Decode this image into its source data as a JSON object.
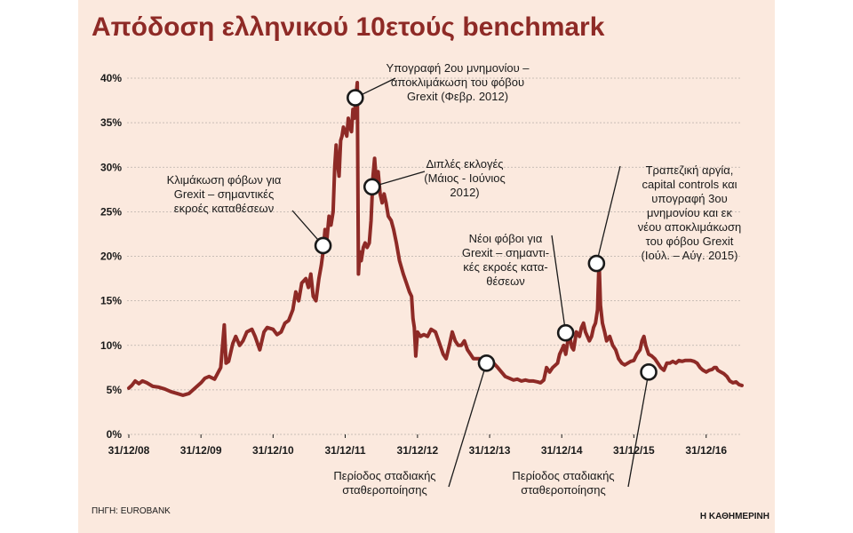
{
  "chart_data": {
    "type": "line",
    "title": "Απόδοση ελληνικού 10ετούς benchmark",
    "xlabel": "",
    "ylabel": "",
    "ylim": [
      0,
      40
    ],
    "yticks": [
      "0%",
      "5%",
      "10%",
      "15%",
      "20%",
      "25%",
      "30%",
      "35%",
      "40%"
    ],
    "xticks": [
      "31/12/08",
      "31/12/09",
      "31/12/10",
      "31/12/11",
      "31/12/12",
      "31/12/13",
      "31/12/14",
      "31/12/15",
      "31/12/16"
    ],
    "grid": true,
    "series_color": "#8e2a26",
    "series": [
      {
        "values": [
          {
            "x": "2008-12-31",
            "y": 5.2
          },
          {
            "x": "2009-01-15",
            "y": 5.5
          },
          {
            "x": "2009-02-01",
            "y": 6.0
          },
          {
            "x": "2009-02-20",
            "y": 5.7
          },
          {
            "x": "2009-03-10",
            "y": 6.0
          },
          {
            "x": "2009-04-01",
            "y": 5.8
          },
          {
            "x": "2009-05-01",
            "y": 5.4
          },
          {
            "x": "2009-06-01",
            "y": 5.3
          },
          {
            "x": "2009-07-01",
            "y": 5.1
          },
          {
            "x": "2009-08-01",
            "y": 4.8
          },
          {
            "x": "2009-09-01",
            "y": 4.6
          },
          {
            "x": "2009-10-01",
            "y": 4.4
          },
          {
            "x": "2009-11-01",
            "y": 4.6
          },
          {
            "x": "2009-12-01",
            "y": 5.2
          },
          {
            "x": "2009-12-31",
            "y": 5.8
          },
          {
            "x": "2010-01-20",
            "y": 6.3
          },
          {
            "x": "2010-02-10",
            "y": 6.5
          },
          {
            "x": "2010-03-10",
            "y": 6.2
          },
          {
            "x": "2010-04-10",
            "y": 7.5
          },
          {
            "x": "2010-04-28",
            "y": 12.3
          },
          {
            "x": "2010-05-07",
            "y": 8.0
          },
          {
            "x": "2010-05-20",
            "y": 8.2
          },
          {
            "x": "2010-06-10",
            "y": 10.2
          },
          {
            "x": "2010-06-25",
            "y": 11.0
          },
          {
            "x": "2010-07-15",
            "y": 10.0
          },
          {
            "x": "2010-08-01",
            "y": 10.5
          },
          {
            "x": "2010-08-20",
            "y": 11.5
          },
          {
            "x": "2010-09-15",
            "y": 11.8
          },
          {
            "x": "2010-10-01",
            "y": 11.0
          },
          {
            "x": "2010-10-25",
            "y": 9.5
          },
          {
            "x": "2010-11-15",
            "y": 11.5
          },
          {
            "x": "2010-12-01",
            "y": 12.0
          },
          {
            "x": "2010-12-31",
            "y": 11.8
          },
          {
            "x": "2011-01-20",
            "y": 11.2
          },
          {
            "x": "2011-02-10",
            "y": 11.5
          },
          {
            "x": "2011-03-01",
            "y": 12.5
          },
          {
            "x": "2011-03-20",
            "y": 12.8
          },
          {
            "x": "2011-04-10",
            "y": 14.0
          },
          {
            "x": "2011-04-25",
            "y": 16.0
          },
          {
            "x": "2011-05-10",
            "y": 15.0
          },
          {
            "x": "2011-05-25",
            "y": 17.0
          },
          {
            "x": "2011-06-15",
            "y": 17.5
          },
          {
            "x": "2011-06-28",
            "y": 16.5
          },
          {
            "x": "2011-07-10",
            "y": 18.0
          },
          {
            "x": "2011-07-22",
            "y": 15.5
          },
          {
            "x": "2011-08-05",
            "y": 15.0
          },
          {
            "x": "2011-08-20",
            "y": 17.5
          },
          {
            "x": "2011-09-01",
            "y": 19.0
          },
          {
            "x": "2011-09-10",
            "y": 20.5
          },
          {
            "x": "2011-09-20",
            "y": 23.0
          },
          {
            "x": "2011-09-30",
            "y": 22.0
          },
          {
            "x": "2011-10-10",
            "y": 24.5
          },
          {
            "x": "2011-10-20",
            "y": 23.5
          },
          {
            "x": "2011-10-31",
            "y": 25.0
          },
          {
            "x": "2011-11-08",
            "y": 30.0
          },
          {
            "x": "2011-11-15",
            "y": 32.5
          },
          {
            "x": "2011-11-22",
            "y": 30.5
          },
          {
            "x": "2011-11-30",
            "y": 29.0
          },
          {
            "x": "2011-12-08",
            "y": 33.0
          },
          {
            "x": "2011-12-15",
            "y": 33.5
          },
          {
            "x": "2011-12-22",
            "y": 34.5
          },
          {
            "x": "2011-12-31",
            "y": 34.0
          },
          {
            "x": "2012-01-08",
            "y": 33.5
          },
          {
            "x": "2012-01-16",
            "y": 35.5
          },
          {
            "x": "2012-01-24",
            "y": 34.5
          },
          {
            "x": "2012-02-01",
            "y": 34.0
          },
          {
            "x": "2012-02-08",
            "y": 36.5
          },
          {
            "x": "2012-02-15",
            "y": 35.5
          },
          {
            "x": "2012-02-22",
            "y": 37.5
          },
          {
            "x": "2012-03-01",
            "y": 39.5
          },
          {
            "x": "2012-03-07",
            "y": 18.0
          },
          {
            "x": "2012-03-14",
            "y": 20.5
          },
          {
            "x": "2012-03-21",
            "y": 19.5
          },
          {
            "x": "2012-04-01",
            "y": 21.0
          },
          {
            "x": "2012-04-10",
            "y": 21.5
          },
          {
            "x": "2012-04-20",
            "y": 21.0
          },
          {
            "x": "2012-05-01",
            "y": 21.5
          },
          {
            "x": "2012-05-10",
            "y": 24.0
          },
          {
            "x": "2012-05-20",
            "y": 29.0
          },
          {
            "x": "2012-05-28",
            "y": 31.0
          },
          {
            "x": "2012-06-05",
            "y": 28.5
          },
          {
            "x": "2012-06-15",
            "y": 29.5
          },
          {
            "x": "2012-06-25",
            "y": 27.0
          },
          {
            "x": "2012-07-05",
            "y": 26.0
          },
          {
            "x": "2012-07-15",
            "y": 27.0
          },
          {
            "x": "2012-07-25",
            "y": 26.0
          },
          {
            "x": "2012-08-05",
            "y": 24.5
          },
          {
            "x": "2012-08-20",
            "y": 24.0
          },
          {
            "x": "2012-09-01",
            "y": 23.0
          },
          {
            "x": "2012-09-15",
            "y": 21.5
          },
          {
            "x": "2012-10-01",
            "y": 19.5
          },
          {
            "x": "2012-10-20",
            "y": 18.0
          },
          {
            "x": "2012-11-05",
            "y": 17.0
          },
          {
            "x": "2012-11-20",
            "y": 16.0
          },
          {
            "x": "2012-12-01",
            "y": 15.5
          },
          {
            "x": "2012-12-08",
            "y": 13.0
          },
          {
            "x": "2012-12-15",
            "y": 12.0
          },
          {
            "x": "2012-12-22",
            "y": 8.8
          },
          {
            "x": "2012-12-31",
            "y": 11.5
          },
          {
            "x": "2013-01-15",
            "y": 11.0
          },
          {
            "x": "2013-02-01",
            "y": 11.2
          },
          {
            "x": "2013-02-20",
            "y": 11.0
          },
          {
            "x": "2013-03-10",
            "y": 11.8
          },
          {
            "x": "2013-04-01",
            "y": 11.5
          },
          {
            "x": "2013-04-25",
            "y": 10.0
          },
          {
            "x": "2013-05-10",
            "y": 9.0
          },
          {
            "x": "2013-05-25",
            "y": 8.5
          },
          {
            "x": "2013-06-10",
            "y": 10.0
          },
          {
            "x": "2013-06-25",
            "y": 11.5
          },
          {
            "x": "2013-07-10",
            "y": 10.5
          },
          {
            "x": "2013-07-25",
            "y": 10.0
          },
          {
            "x": "2013-08-10",
            "y": 10.0
          },
          {
            "x": "2013-08-25",
            "y": 10.5
          },
          {
            "x": "2013-09-10",
            "y": 9.5
          },
          {
            "x": "2013-09-25",
            "y": 9.0
          },
          {
            "x": "2013-10-10",
            "y": 8.5
          },
          {
            "x": "2013-10-25",
            "y": 8.5
          },
          {
            "x": "2013-11-10",
            "y": 8.5
          },
          {
            "x": "2013-11-25",
            "y": 8.0
          },
          {
            "x": "2013-12-10",
            "y": 8.5
          },
          {
            "x": "2013-12-31",
            "y": 8.3
          },
          {
            "x": "2014-01-20",
            "y": 8.0
          },
          {
            "x": "2014-02-10",
            "y": 7.5
          },
          {
            "x": "2014-03-01",
            "y": 7.0
          },
          {
            "x": "2014-03-20",
            "y": 6.5
          },
          {
            "x": "2014-04-10",
            "y": 6.3
          },
          {
            "x": "2014-05-01",
            "y": 6.1
          },
          {
            "x": "2014-05-20",
            "y": 6.2
          },
          {
            "x": "2014-06-10",
            "y": 6.0
          },
          {
            "x": "2014-06-30",
            "y": 6.1
          },
          {
            "x": "2014-07-20",
            "y": 6.0
          },
          {
            "x": "2014-08-10",
            "y": 6.0
          },
          {
            "x": "2014-08-31",
            "y": 5.9
          },
          {
            "x": "2014-09-15",
            "y": 5.8
          },
          {
            "x": "2014-10-01",
            "y": 6.1
          },
          {
            "x": "2014-10-15",
            "y": 7.5
          },
          {
            "x": "2014-10-31",
            "y": 7.0
          },
          {
            "x": "2014-11-15",
            "y": 7.5
          },
          {
            "x": "2014-11-30",
            "y": 7.8
          },
          {
            "x": "2014-12-10",
            "y": 8.0
          },
          {
            "x": "2014-12-20",
            "y": 9.0
          },
          {
            "x": "2014-12-31",
            "y": 9.5
          },
          {
            "x": "2015-01-10",
            "y": 10.0
          },
          {
            "x": "2015-01-20",
            "y": 9.0
          },
          {
            "x": "2015-01-31",
            "y": 10.5
          },
          {
            "x": "2015-02-10",
            "y": 11.0
          },
          {
            "x": "2015-02-20",
            "y": 9.8
          },
          {
            "x": "2015-03-01",
            "y": 9.5
          },
          {
            "x": "2015-03-15",
            "y": 11.5
          },
          {
            "x": "2015-03-31",
            "y": 11.0
          },
          {
            "x": "2015-04-10",
            "y": 12.0
          },
          {
            "x": "2015-04-20",
            "y": 12.5
          },
          {
            "x": "2015-04-30",
            "y": 11.5
          },
          {
            "x": "2015-05-10",
            "y": 11.0
          },
          {
            "x": "2015-05-20",
            "y": 10.5
          },
          {
            "x": "2015-05-31",
            "y": 11.0
          },
          {
            "x": "2015-06-10",
            "y": 12.0
          },
          {
            "x": "2015-06-20",
            "y": 12.5
          },
          {
            "x": "2015-06-30",
            "y": 14.0
          },
          {
            "x": "2015-07-08",
            "y": 19.5
          },
          {
            "x": "2015-07-15",
            "y": 14.5
          },
          {
            "x": "2015-07-25",
            "y": 12.5
          },
          {
            "x": "2015-08-05",
            "y": 11.5
          },
          {
            "x": "2015-08-15",
            "y": 10.5
          },
          {
            "x": "2015-08-31",
            "y": 11.0
          },
          {
            "x": "2015-09-15",
            "y": 10.0
          },
          {
            "x": "2015-09-30",
            "y": 9.5
          },
          {
            "x": "2015-10-15",
            "y": 8.5
          },
          {
            "x": "2015-10-31",
            "y": 8.0
          },
          {
            "x": "2015-11-15",
            "y": 7.8
          },
          {
            "x": "2015-11-30",
            "y": 8.0
          },
          {
            "x": "2015-12-15",
            "y": 8.2
          },
          {
            "x": "2015-12-31",
            "y": 8.3
          },
          {
            "x": "2016-01-15",
            "y": 9.0
          },
          {
            "x": "2016-01-31",
            "y": 9.5
          },
          {
            "x": "2016-02-10",
            "y": 10.5
          },
          {
            "x": "2016-02-20",
            "y": 11.0
          },
          {
            "x": "2016-02-29",
            "y": 10.0
          },
          {
            "x": "2016-03-15",
            "y": 9.0
          },
          {
            "x": "2016-03-31",
            "y": 8.8
          },
          {
            "x": "2016-04-15",
            "y": 8.5
          },
          {
            "x": "2016-04-30",
            "y": 8.0
          },
          {
            "x": "2016-05-15",
            "y": 7.5
          },
          {
            "x": "2016-05-31",
            "y": 7.2
          },
          {
            "x": "2016-06-15",
            "y": 8.0
          },
          {
            "x": "2016-06-30",
            "y": 8.0
          },
          {
            "x": "2016-07-15",
            "y": 8.2
          },
          {
            "x": "2016-07-31",
            "y": 8.0
          },
          {
            "x": "2016-08-15",
            "y": 8.3
          },
          {
            "x": "2016-08-31",
            "y": 8.2
          },
          {
            "x": "2016-09-15",
            "y": 8.3
          },
          {
            "x": "2016-09-30",
            "y": 8.3
          },
          {
            "x": "2016-10-15",
            "y": 8.3
          },
          {
            "x": "2016-10-31",
            "y": 8.2
          },
          {
            "x": "2016-11-15",
            "y": 8.0
          },
          {
            "x": "2016-11-30",
            "y": 7.5
          },
          {
            "x": "2016-12-15",
            "y": 7.2
          },
          {
            "x": "2016-12-31",
            "y": 7.0
          },
          {
            "x": "2017-01-15",
            "y": 7.2
          },
          {
            "x": "2017-01-31",
            "y": 7.3
          },
          {
            "x": "2017-02-10",
            "y": 7.5
          },
          {
            "x": "2017-02-20",
            "y": 7.5
          },
          {
            "x": "2017-02-28",
            "y": 7.2
          },
          {
            "x": "2017-03-15",
            "y": 7.0
          },
          {
            "x": "2017-03-31",
            "y": 6.8
          },
          {
            "x": "2017-04-15",
            "y": 6.5
          },
          {
            "x": "2017-04-30",
            "y": 6.0
          },
          {
            "x": "2017-05-15",
            "y": 5.8
          },
          {
            "x": "2017-05-31",
            "y": 5.9
          },
          {
            "x": "2017-06-15",
            "y": 5.6
          },
          {
            "x": "2017-06-30",
            "y": 5.5
          }
        ]
      }
    ],
    "annotations": [
      {
        "x": "2011-09-10",
        "y": 21.2,
        "lines": [
          "Κλιμάκωση φόβων για",
          "Grexit – σημαντικές",
          "εκροές καταθέσεων"
        ]
      },
      {
        "x": "2012-02-20",
        "y": 37.8,
        "lines": [
          "Υπογραφή 2ου μνημονίου –",
          "αποκλιμάκωση του φόβου",
          "Grexit (Φεβρ. 2012)"
        ]
      },
      {
        "x": "2012-05-15",
        "y": 27.8,
        "lines": [
          "Διπλές εκλογές",
          "(Μάιος - Ιούνιος",
          "2012)"
        ]
      },
      {
        "x": "2013-12-15",
        "y": 8.0,
        "lines": [
          "Περίοδος σταδιακής",
          "σταθεροποίησης"
        ]
      },
      {
        "x": "2015-01-20",
        "y": 11.4,
        "lines": [
          "Νέοι φόβοι για",
          "Grexit – σημαντι-",
          "κές εκροές κατα-",
          "θέσεων"
        ]
      },
      {
        "x": "2015-06-25",
        "y": 19.2,
        "lines": [
          "Τραπεζική αργία,",
          "capital controls και",
          "υπογραφή 3ου",
          "μνημονίου και εκ",
          "νέου αποκλιμάκωση",
          "του φόβου  Grexit",
          "(Ιούλ. – Αύγ. 2015)"
        ]
      },
      {
        "x": "2016-03-15",
        "y": 7.0,
        "lines": [
          "Περίοδος σταδιακής",
          "σταθεροποίησης"
        ]
      }
    ]
  },
  "footer": {
    "source": "ΠΗΓΗ: EUROBANK",
    "publisher": "Η ΚΑΘΗΜΕΡΙΝΗ"
  }
}
